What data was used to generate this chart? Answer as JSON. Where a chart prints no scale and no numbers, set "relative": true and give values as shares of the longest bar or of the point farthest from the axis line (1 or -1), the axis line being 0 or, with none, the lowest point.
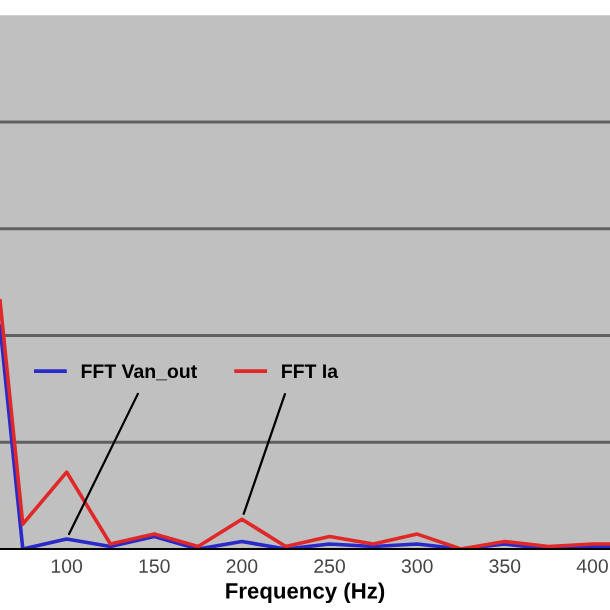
{
  "chart_data": {
    "type": "line",
    "xlabel": "Frequency (Hz)",
    "relative": true,
    "xlim": [
      62,
      410
    ],
    "xticks": [
      100,
      150,
      200,
      250,
      300,
      350,
      400
    ],
    "x": [
      62,
      75,
      100,
      125,
      150,
      175,
      200,
      225,
      250,
      275,
      300,
      325,
      350,
      375,
      400,
      410
    ],
    "series": [
      {
        "name": "FFT Van_out",
        "color": "#2a2ac8",
        "values": [
          0.9,
          0,
          0.04,
          0.01,
          0.05,
          0,
          0.03,
          0,
          0.02,
          0.01,
          0.02,
          0,
          0.02,
          0,
          0.01,
          0.01
        ]
      },
      {
        "name": "FFT Ia",
        "color": "#e02828",
        "values": [
          1,
          0.1,
          0.31,
          0.02,
          0.06,
          0.01,
          0.12,
          0.01,
          0.05,
          0.02,
          0.06,
          0,
          0.03,
          0.01,
          0.02,
          0.02
        ]
      }
    ],
    "ref_lines": [
      {
        "axis": "y",
        "value": 0.43,
        "color": "#606060"
      },
      {
        "axis": "y",
        "value": 0.86,
        "color": "#606060"
      },
      {
        "axis": "y",
        "value": 1.29,
        "color": "#606060"
      },
      {
        "axis": "y",
        "value": 1.72,
        "color": "#606060"
      }
    ],
    "legend": "left",
    "marker": "none",
    "line_style": "solid"
  }
}
